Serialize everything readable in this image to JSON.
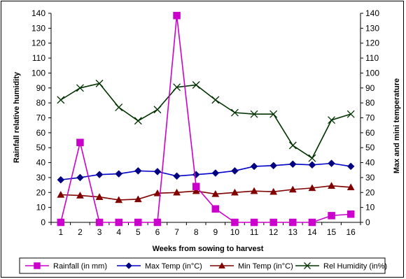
{
  "chart_data": {
    "type": "line",
    "title": "",
    "xlabel": "Weeks from sowing to harvest",
    "ylabel_left": "Rainfall relative humidity",
    "ylabel_right": "Max and mini temperature",
    "ylim": [
      0,
      140
    ],
    "ylim_right": [
      0,
      140
    ],
    "y_ticks": [
      0,
      10,
      20,
      30,
      40,
      50,
      60,
      70,
      80,
      90,
      100,
      110,
      120,
      130,
      140
    ],
    "categories": [
      "1",
      "2",
      "3",
      "4",
      "5",
      "6",
      "7",
      "8",
      "9",
      "10",
      "11",
      "12",
      "13",
      "14",
      "15",
      "16"
    ],
    "grid": false,
    "legend_position": "bottom",
    "series": [
      {
        "name": "Rainfall (in mm)",
        "color": "#cc00cc",
        "line_color": "#cc00cc",
        "marker": "square",
        "values": [
          0,
          53.5,
          0,
          0,
          0,
          0,
          138.5,
          24,
          9,
          0,
          0,
          0,
          0,
          0,
          4.5,
          5.5
        ]
      },
      {
        "name": "Max Temp (in°C)",
        "color": "#000080",
        "line_color": "#0000cc",
        "marker": "diamond",
        "values": [
          28.5,
          30,
          32,
          32.5,
          34.5,
          34,
          31,
          32,
          33,
          34.5,
          37.5,
          38,
          39,
          38.5,
          39.5,
          37.5
        ]
      },
      {
        "name": "Min Temp (in°C)",
        "color": "#800000",
        "line_color": "#800000",
        "marker": "triangle",
        "values": [
          18.5,
          18,
          17,
          15,
          15.5,
          19.5,
          20,
          21,
          19,
          20,
          21,
          20.5,
          22,
          23,
          24.5,
          23.5
        ]
      },
      {
        "name": "Rel Humidity  (in%)",
        "color": "#003300",
        "line_color": "#003300",
        "marker": "x",
        "values": [
          82,
          90,
          93,
          77,
          68,
          75.5,
          90.5,
          92,
          82,
          73.5,
          72.5,
          72.5,
          51.5,
          43,
          68.5,
          72.5
        ]
      }
    ]
  }
}
